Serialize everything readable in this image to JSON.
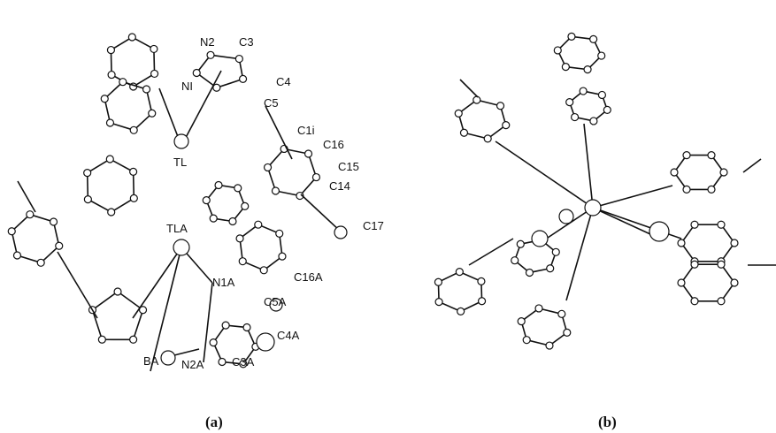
{
  "panel_a": {
    "atom_labels": [
      "N2",
      "C3",
      "C4",
      "NI",
      "C5",
      "C1i",
      "C16",
      "TL",
      "C15",
      "C14",
      "C17",
      "TLA",
      "N1A",
      "C16A",
      "C5A",
      "C4A",
      "BA",
      "N2A",
      "C3A"
    ],
    "caption": "(a)"
  },
  "panel_b": {
    "caption": "(b)"
  }
}
